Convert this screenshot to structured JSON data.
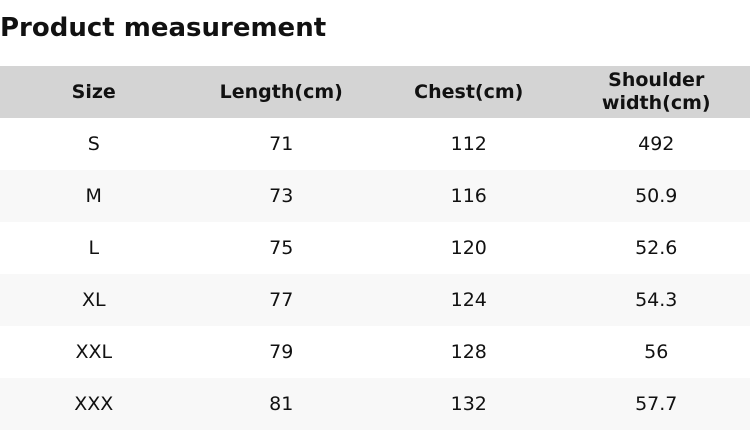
{
  "title": "Product measurement",
  "table": {
    "headers": [
      "Size",
      "Length(cm)",
      "Chest(cm)",
      "Shoulder width(cm)"
    ],
    "header_lines": [
      [
        "Size"
      ],
      [
        "Length(cm)"
      ],
      [
        "Chest(cm)"
      ],
      [
        "Shoulder",
        "width(cm)"
      ]
    ],
    "rows": [
      [
        "S",
        "71",
        "112",
        "492"
      ],
      [
        "M",
        "73",
        "116",
        "50.9"
      ],
      [
        "L",
        "75",
        "120",
        "52.6"
      ],
      [
        "XL",
        "77",
        "124",
        "54.3"
      ],
      [
        "XXL",
        "79",
        "128",
        "56"
      ],
      [
        "XXX",
        "81",
        "132",
        "57.7"
      ]
    ]
  },
  "colors": {
    "header_bg": "#d4d4d4",
    "stripe_bg": "#f8f8f8"
  }
}
